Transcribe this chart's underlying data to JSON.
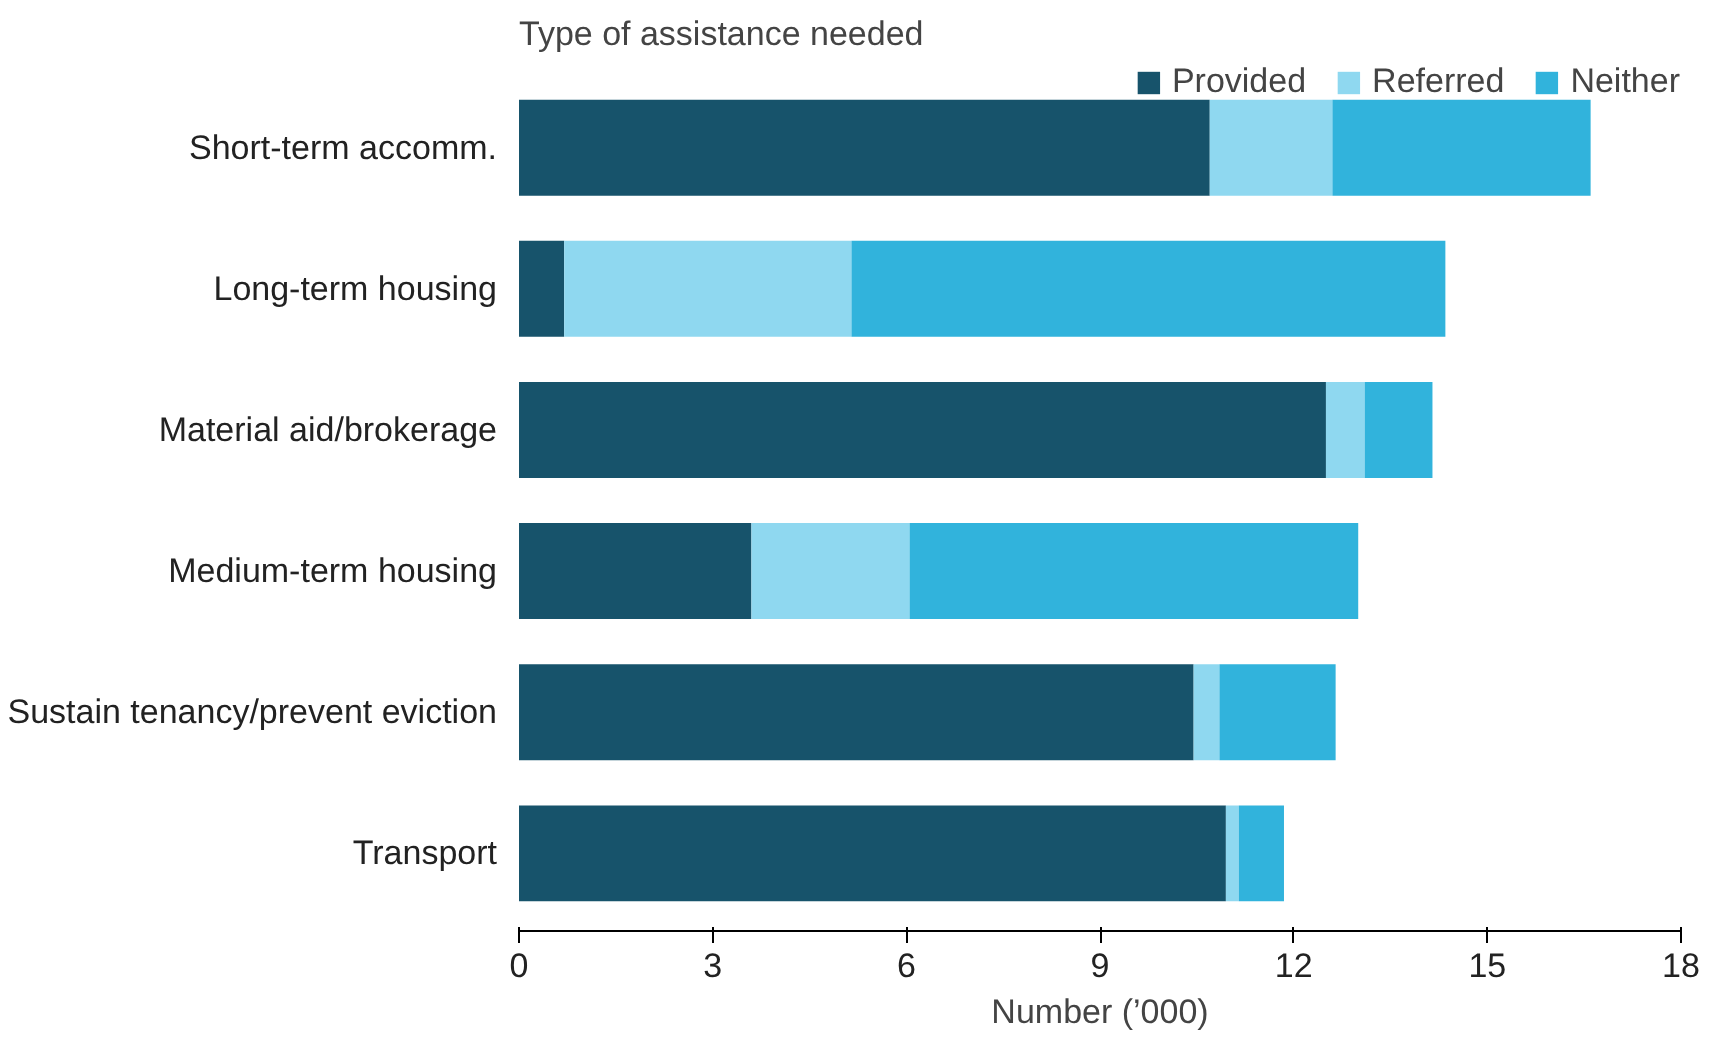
{
  "chart_data": {
    "type": "bar",
    "orientation": "horizontal",
    "stacked": true,
    "ylabel": "Type of assistance needed",
    "xlabel": "Number (’000)",
    "categories": [
      "Short-term accomm.",
      "Long-term housing",
      "Material aid/brokerage",
      "Medium-term housing",
      "Sustain tenancy/prevent eviction",
      "Transport"
    ],
    "series": [
      {
        "name": "Provided",
        "color": "#17536b",
        "values": [
          10.7,
          0.7,
          12.5,
          3.6,
          10.45,
          10.95
        ]
      },
      {
        "name": "Referred",
        "color": "#8fd8f0",
        "values": [
          1.9,
          4.45,
          0.6,
          2.45,
          0.4,
          0.2
        ]
      },
      {
        "name": "Neither",
        "color": "#31b3dc",
        "values": [
          4.0,
          9.2,
          1.05,
          6.95,
          1.8,
          0.7
        ]
      }
    ],
    "xlim": [
      0,
      18
    ],
    "xticks": [
      0,
      3,
      6,
      9,
      12,
      15,
      18
    ],
    "grid": false,
    "legend": "top"
  }
}
